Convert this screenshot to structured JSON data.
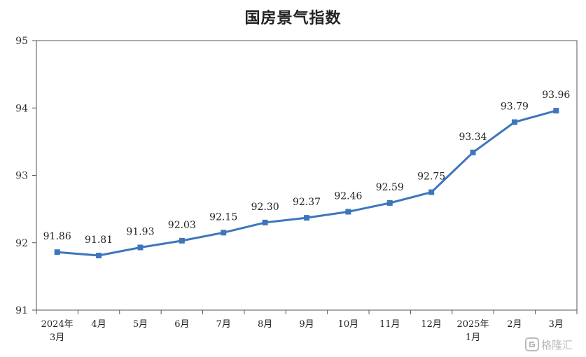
{
  "chart_data": {
    "type": "line",
    "title": "国房景气指数",
    "categories": [
      [
        "2024年",
        "3月"
      ],
      [
        "4月"
      ],
      [
        "5月"
      ],
      [
        "6月"
      ],
      [
        "7月"
      ],
      [
        "8月"
      ],
      [
        "9月"
      ],
      [
        "10月"
      ],
      [
        "11月"
      ],
      [
        "12月"
      ],
      [
        "2025年",
        "1月"
      ],
      [
        "2月"
      ],
      [
        "3月"
      ]
    ],
    "series": [
      {
        "values": [
          91.86,
          91.81,
          91.93,
          92.03,
          92.15,
          92.3,
          92.37,
          92.46,
          92.59,
          92.75,
          93.34,
          93.79,
          93.96
        ]
      }
    ],
    "data_labels": [
      "91.86",
      "91.81",
      "91.93",
      "92.03",
      "92.15",
      "92.30",
      "92.37",
      "92.46",
      "92.59",
      "92.75",
      "93.34",
      "93.79",
      "93.96"
    ],
    "y_ticks": [
      91,
      92,
      93,
      94,
      95
    ],
    "ylim": [
      91,
      95
    ],
    "grid": false,
    "colors": {
      "line": "#3e76bd",
      "axis": "#555555"
    }
  },
  "watermark": {
    "text": "格隆汇"
  }
}
